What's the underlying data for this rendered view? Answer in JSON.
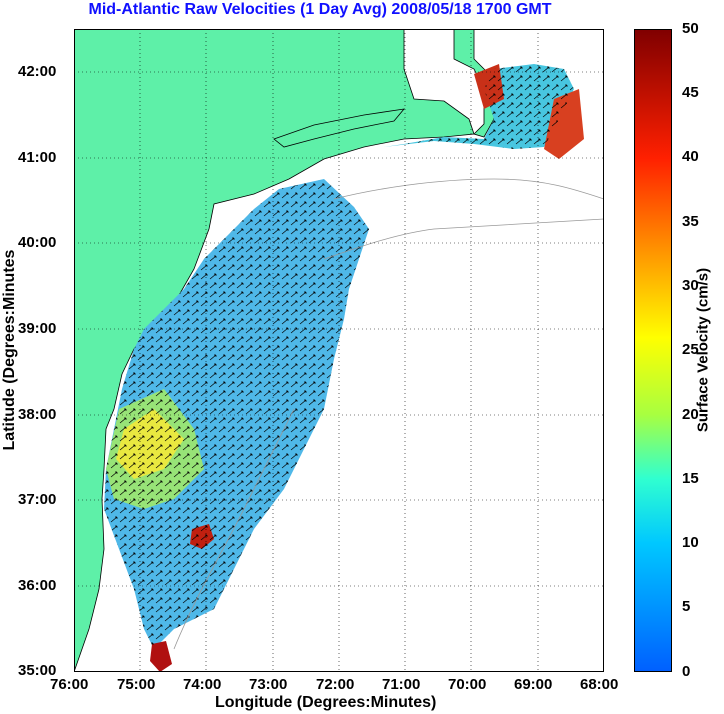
{
  "title": "Mid-Atlantic Raw Velocities (1 Day Avg) 2008/05/18 1700 GMT",
  "x_axis": {
    "label": "Longitude (Degrees:Minutes)",
    "ticks": [
      "76:00",
      "75:00",
      "74:00",
      "73:00",
      "72:00",
      "71:00",
      "70:00",
      "69:00",
      "68:00"
    ]
  },
  "y_axis": {
    "label": "Latitude (Degrees:Minutes",
    "ticks": [
      "42:00",
      "41:00",
      "40:00",
      "39:00",
      "38:00",
      "37:00",
      "36:00",
      "35:00"
    ]
  },
  "colorbar": {
    "label": "Surface Velocity (cm/s)",
    "ticks": [
      "50",
      "45",
      "40",
      "35",
      "30",
      "25",
      "20",
      "15",
      "10",
      "5",
      "0"
    ],
    "range": [
      0,
      50
    ],
    "colors": [
      "#0060ff",
      "#00c8ff",
      "#30ffd0",
      "#a8ff40",
      "#ffff00",
      "#ffa000",
      "#ff2000",
      "#800000"
    ]
  },
  "map": {
    "lon_range": [
      -76,
      -68
    ],
    "lat_range": [
      35,
      42.5
    ],
    "land_color": "#5ef0a8",
    "grid": "dotted"
  }
}
